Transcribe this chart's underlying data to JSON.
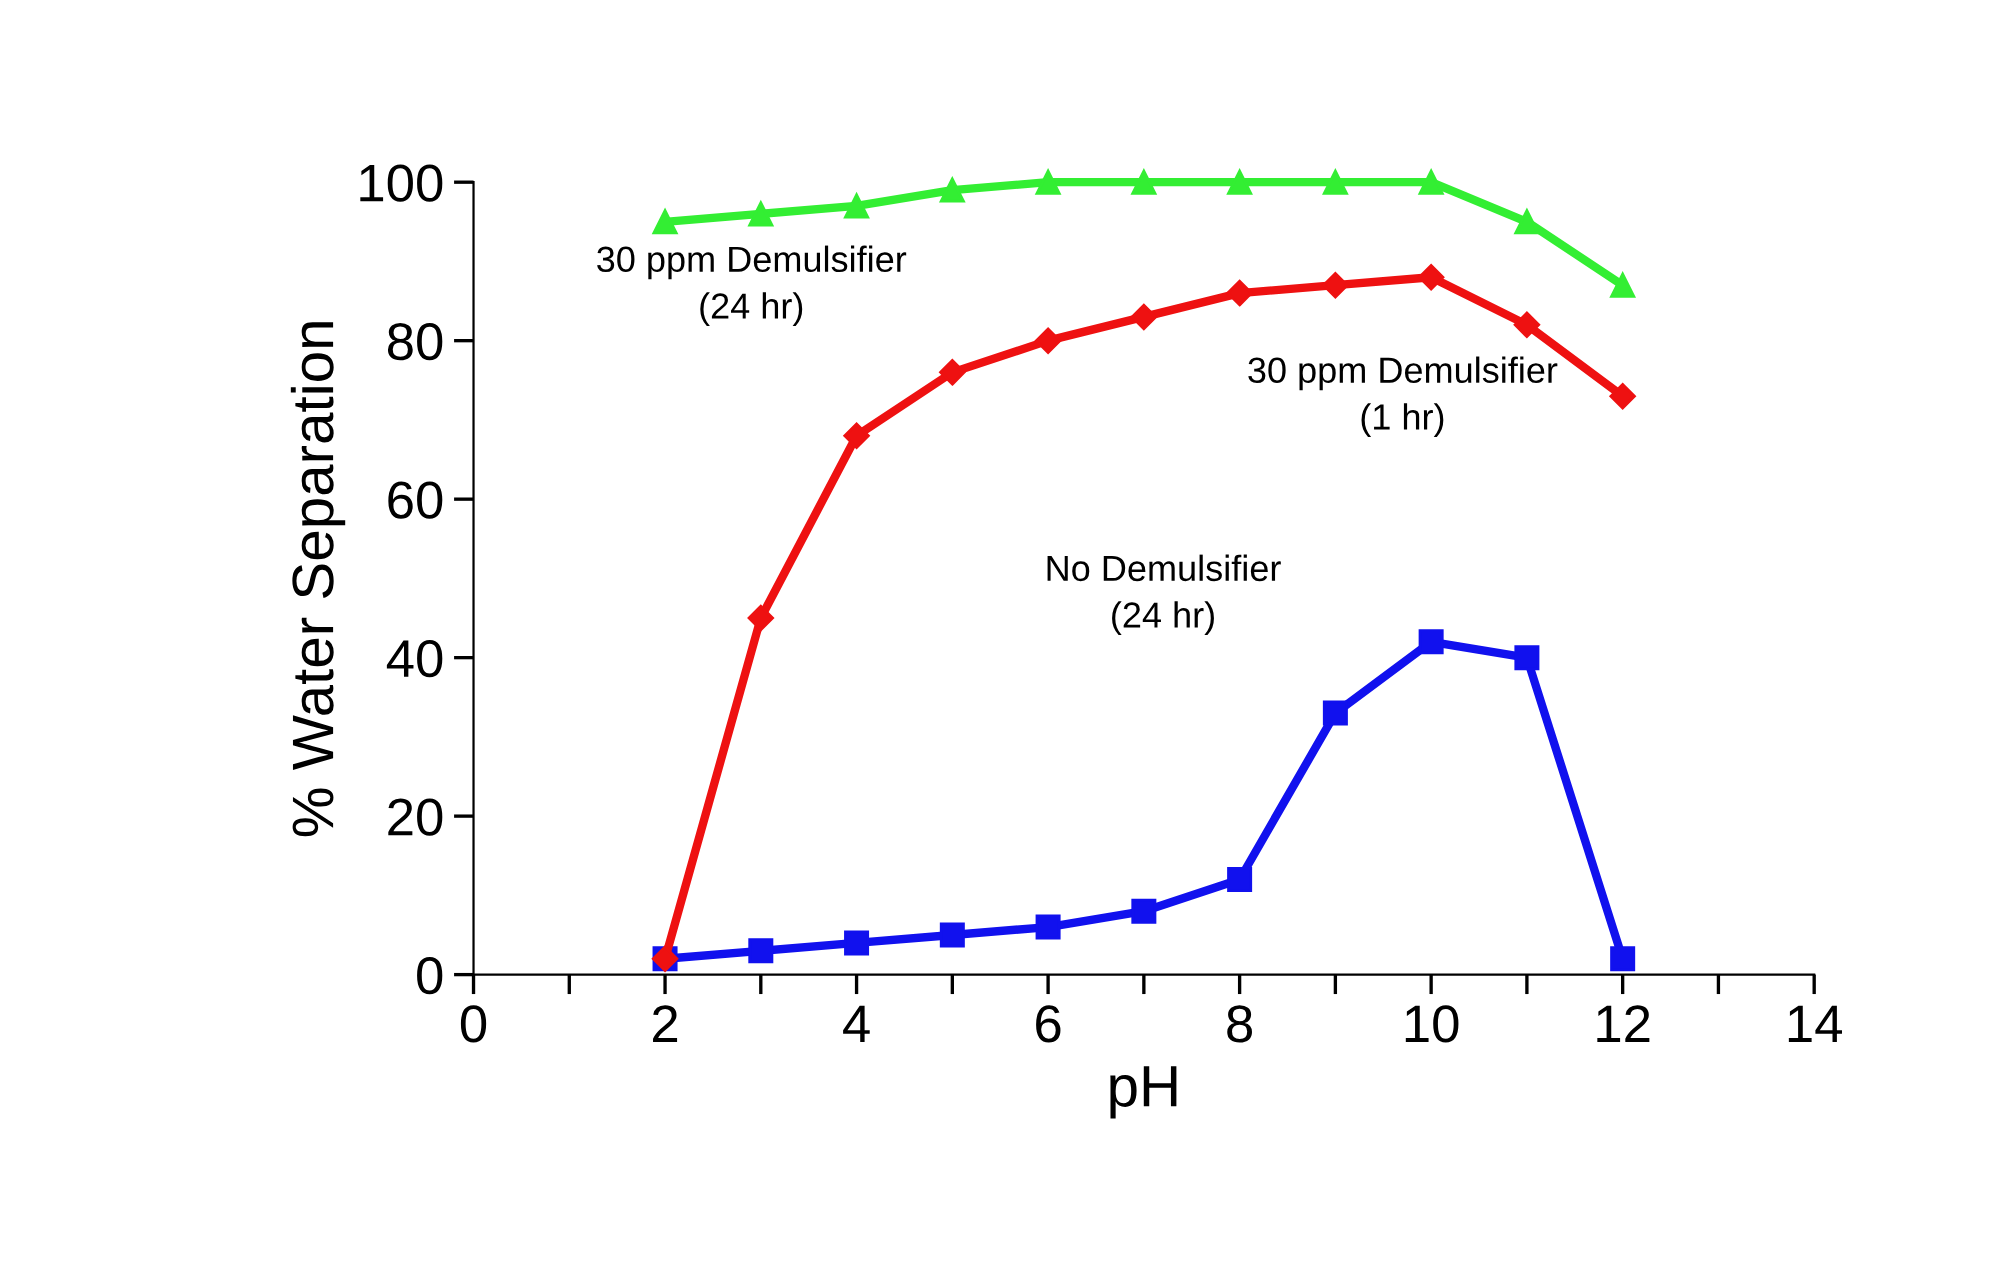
{
  "chart_data": {
    "type": "line",
    "xlabel": "pH",
    "ylabel": "% Water Separation",
    "x": [
      2,
      3,
      4,
      5,
      6,
      7,
      8,
      9,
      10,
      11,
      12
    ],
    "series": [
      {
        "name": "30 ppm Demulsifier\n(24 hr)",
        "color": "#33ee33",
        "marker": "triangle",
        "values": [
          95,
          96,
          97,
          99,
          100,
          100,
          100,
          100,
          100,
          95,
          87
        ]
      },
      {
        "name": "30 ppm Demulsifier\n(1 hr)",
        "color": "#ee1111",
        "marker": "diamond",
        "values": [
          2,
          45,
          68,
          76,
          80,
          83,
          86,
          87,
          88,
          82,
          73
        ]
      },
      {
        "name": "No Demulsifier\n(24 hr)",
        "color": "#1111ee",
        "marker": "square",
        "values": [
          2,
          3,
          4,
          5,
          6,
          8,
          12,
          33,
          42,
          40,
          2
        ]
      }
    ],
    "xlim": [
      0,
      14
    ],
    "ylim": [
      0,
      100
    ],
    "xticks": [
      0,
      {
        "value": 1,
        "label": null
      },
      2,
      {
        "value": 3,
        "label": null
      },
      4,
      {
        "value": 5,
        "label": null
      },
      6,
      {
        "value": 7,
        "label": null
      },
      8,
      {
        "value": 9,
        "label": null
      },
      10,
      {
        "value": 11,
        "label": null
      },
      12,
      {
        "value": 13,
        "label": null
      },
      14
    ],
    "yticks": [
      0,
      20,
      40,
      60,
      80,
      100
    ],
    "grid": false,
    "legend": false,
    "line_style": "solid"
  }
}
